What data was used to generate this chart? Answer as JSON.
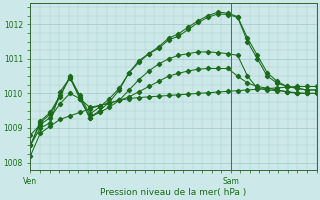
{
  "xlabel": "Pression niveau de la mer( hPa )",
  "background_color": "#cce8e8",
  "grid_color": "#aacccc",
  "line_color": "#1a6b1a",
  "spine_color": "#336633",
  "ylim": [
    1007.8,
    1012.6
  ],
  "yticks": [
    1008,
    1009,
    1010,
    1011,
    1012
  ],
  "xlim": [
    0,
    30
  ],
  "ven_x": 0,
  "sam_x": 21,
  "x_tick_positions": [
    0,
    21
  ],
  "x_tick_labels": [
    "Ven",
    "Sam"
  ],
  "series": [
    [
      1008.2,
      1008.85,
      1009.05,
      1009.25,
      1009.35,
      1009.45,
      1009.55,
      1009.65,
      1009.72,
      1009.8,
      1009.85,
      1009.88,
      1009.9,
      1009.92,
      1009.94,
      1009.96,
      1009.98,
      1010.0,
      1010.02,
      1010.04,
      1010.06,
      1010.08,
      1010.1,
      1010.12,
      1010.14,
      1010.16,
      1010.18,
      1010.2,
      1010.2,
      1010.2
    ],
    [
      1008.8,
      1009.1,
      1009.3,
      1009.7,
      1010.0,
      1009.85,
      1009.6,
      1009.65,
      1009.72,
      1009.8,
      1009.9,
      1010.05,
      1010.2,
      1010.35,
      1010.5,
      1010.58,
      1010.65,
      1010.7,
      1010.72,
      1010.72,
      1010.72,
      1010.5,
      1010.3,
      1010.2,
      1010.15,
      1010.1,
      1010.05,
      1010.0,
      1010.0,
      1010.0
    ],
    [
      1008.5,
      1009.0,
      1009.15,
      1010.05,
      1010.45,
      1009.85,
      1009.3,
      1009.45,
      1009.6,
      1009.8,
      1010.1,
      1010.4,
      1010.65,
      1010.85,
      1011.0,
      1011.1,
      1011.15,
      1011.2,
      1011.2,
      1011.18,
      1011.15,
      1011.1,
      1010.5,
      1010.15,
      1010.1,
      1010.08,
      1010.05,
      1010.02,
      1010.0,
      1010.0
    ],
    [
      1008.5,
      1009.15,
      1009.4,
      1009.9,
      1010.5,
      1009.9,
      1009.3,
      1009.5,
      1009.75,
      1010.1,
      1010.6,
      1010.9,
      1011.15,
      1011.3,
      1011.55,
      1011.65,
      1011.85,
      1012.05,
      1012.2,
      1012.3,
      1012.28,
      1012.2,
      1011.5,
      1011.0,
      1010.5,
      1010.3,
      1010.2,
      1010.15,
      1010.1,
      1010.1
    ],
    [
      1008.5,
      1009.2,
      1009.45,
      1009.95,
      1010.45,
      1009.95,
      1009.4,
      1009.6,
      1009.85,
      1010.15,
      1010.6,
      1010.95,
      1011.15,
      1011.35,
      1011.6,
      1011.72,
      1011.92,
      1012.1,
      1012.25,
      1012.35,
      1012.32,
      1012.22,
      1011.6,
      1011.1,
      1010.6,
      1010.35,
      1010.2,
      1010.15,
      1010.1,
      1010.1
    ]
  ]
}
